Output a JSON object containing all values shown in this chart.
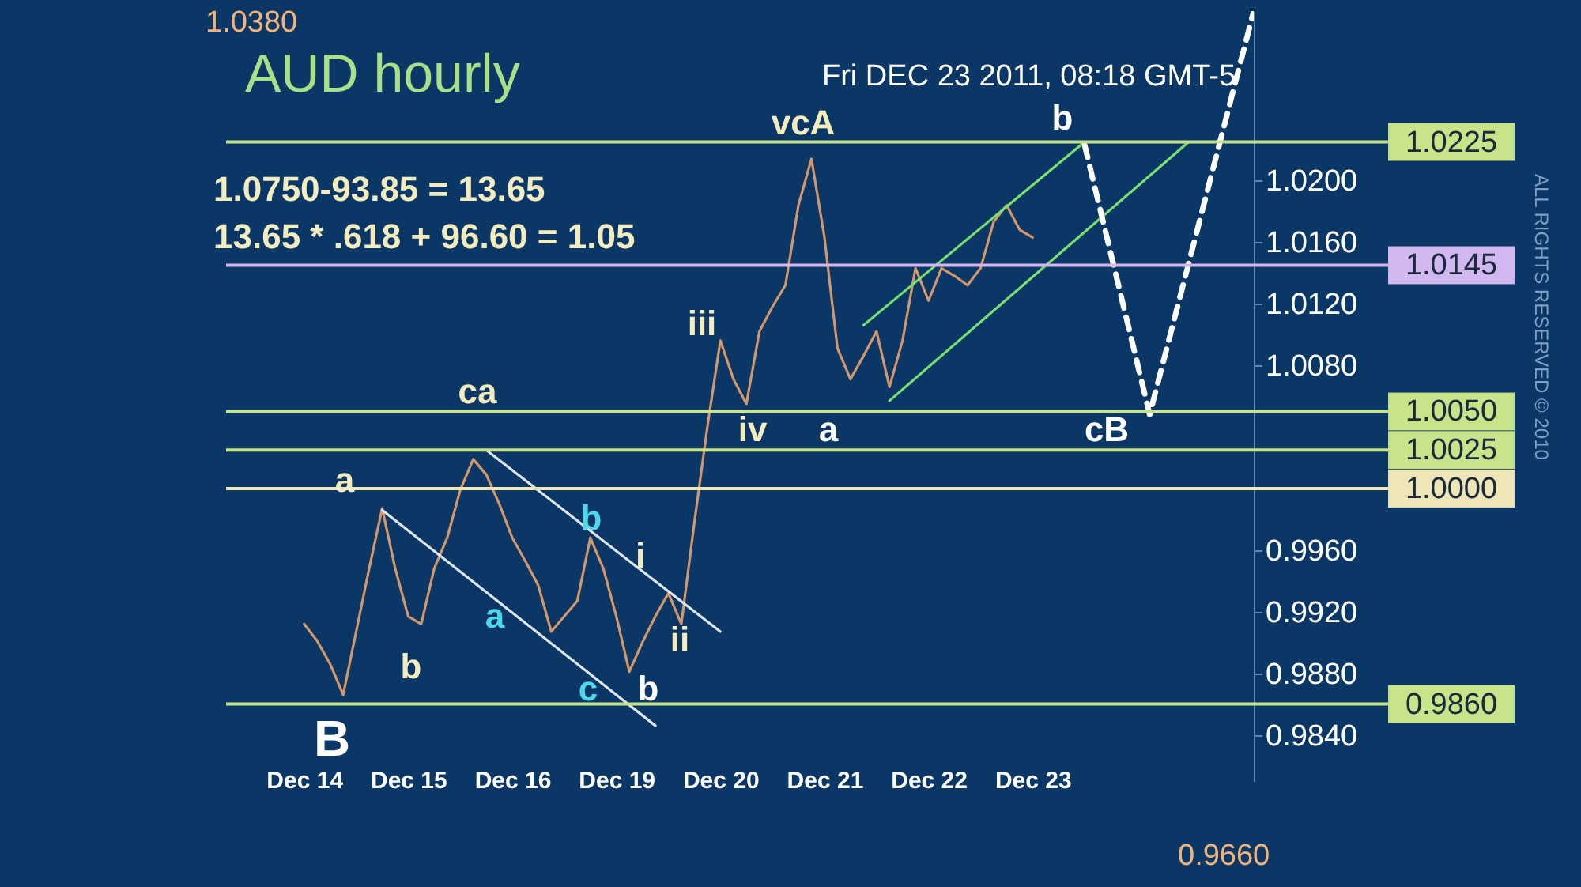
{
  "chart_data": {
    "type": "line",
    "title": "AUD hourly",
    "subtitle": "Fri DEC 23 2011, 08:18 GMT-5",
    "categories": [
      null,
      null,
      null,
      null,
      null,
      null,
      "Dec 14",
      null,
      null,
      null,
      null,
      null,
      null,
      null,
      "Dec 15",
      null,
      null,
      null,
      null,
      null,
      null,
      null,
      "Dec 16",
      null,
      null,
      null,
      null,
      null,
      null,
      null,
      "Dec 19",
      null,
      null,
      null,
      null,
      null,
      null,
      null,
      "Dec 20",
      null,
      null,
      null,
      null,
      null,
      null,
      null,
      "Dec 21",
      null,
      null,
      null,
      null,
      null,
      null,
      null,
      "Dec 22",
      null,
      null,
      null,
      null,
      null,
      null,
      null,
      "Dec 23",
      null,
      null,
      null,
      null,
      null,
      null,
      null,
      null,
      null,
      null,
      null,
      null,
      null,
      null,
      null,
      null,
      null
    ],
    "ylim": [
      0.981,
      1.031
    ],
    "yticks": [
      {
        "value": 0.984,
        "label": "0.9840"
      },
      {
        "value": 0.988,
        "label": "0.9880"
      },
      {
        "value": 0.992,
        "label": "0.9920"
      },
      {
        "value": 0.996,
        "label": "0.9960"
      },
      {
        "value": 1.008,
        "label": "1.0080"
      },
      {
        "value": 1.012,
        "label": "1.0120"
      },
      {
        "value": 1.016,
        "label": "1.0160"
      },
      {
        "value": 1.02,
        "label": "1.0200"
      }
    ],
    "grid": false,
    "series": [
      {
        "color": "#d2976a",
        "values": [
          null,
          null,
          null,
          null,
          null,
          null,
          0.9912,
          0.9901,
          0.9886,
          0.9866,
          0.9907,
          0.9948,
          0.9987,
          0.9948,
          0.9917,
          0.9912,
          0.9948,
          0.9968,
          0.9999,
          1.0019,
          1.0009,
          0.999,
          0.9968,
          0.9953,
          0.9937,
          0.9907,
          0.9917,
          0.9927,
          0.9968,
          0.9948,
          0.9917,
          0.9881,
          0.99,
          0.9917,
          0.9932,
          0.9912,
          0.9978,
          1.004,
          1.0096,
          1.0071,
          1.0055,
          1.0102,
          1.0118,
          1.0132,
          1.0184,
          1.0214,
          1.0163,
          1.0091,
          1.0071,
          1.0086,
          1.0102,
          1.0066,
          1.0096,
          1.0143,
          1.0122,
          1.0143,
          1.0138,
          1.0132,
          1.0143,
          1.0173,
          1.0184,
          1.0168,
          1.0163,
          null,
          null,
          null,
          null,
          null,
          null,
          null,
          null,
          null,
          null,
          null,
          null,
          null,
          null,
          null,
          null,
          null
        ]
      },
      {
        "color": "#dde6f0",
        "values": [
          null,
          null,
          null,
          null,
          null,
          null,
          null,
          null,
          null,
          null,
          null,
          null,
          0.9986,
          null,
          null,
          null,
          null,
          null,
          null,
          null,
          null,
          null,
          null,
          null,
          null,
          null,
          null,
          null,
          null,
          null,
          null,
          null,
          null,
          0.9846,
          null,
          null,
          null,
          null,
          null,
          null,
          null,
          null,
          null,
          null,
          null,
          null,
          null,
          null,
          null,
          null,
          null,
          null,
          null,
          null,
          null,
          null,
          null,
          null,
          null,
          null,
          null,
          null,
          null,
          null,
          null,
          null,
          null,
          null,
          null,
          null,
          null,
          null,
          null,
          null,
          null,
          null,
          null,
          null,
          null,
          null
        ]
      },
      {
        "color": "#dde6f0",
        "values": [
          null,
          null,
          null,
          null,
          null,
          null,
          null,
          null,
          null,
          null,
          null,
          null,
          null,
          null,
          null,
          null,
          null,
          null,
          null,
          null,
          1.0025,
          null,
          null,
          null,
          null,
          null,
          null,
          null,
          null,
          null,
          null,
          null,
          null,
          null,
          null,
          null,
          null,
          null,
          0.9907,
          null,
          null,
          null,
          null,
          null,
          null,
          null,
          null,
          null,
          null,
          null,
          null,
          null,
          null,
          null,
          null,
          null,
          null,
          null,
          null,
          null,
          null,
          null,
          null,
          null,
          null,
          null,
          null,
          null,
          null,
          null,
          null,
          null,
          null,
          null,
          null,
          null,
          null,
          null,
          null,
          null
        ]
      },
      {
        "color": "#77e070",
        "values": [
          null,
          null,
          null,
          null,
          null,
          null,
          null,
          null,
          null,
          null,
          null,
          null,
          null,
          null,
          null,
          null,
          null,
          null,
          null,
          null,
          null,
          null,
          null,
          null,
          null,
          null,
          null,
          null,
          null,
          null,
          null,
          null,
          null,
          null,
          null,
          null,
          null,
          null,
          null,
          null,
          null,
          null,
          null,
          null,
          null,
          null,
          null,
          null,
          null,
          1.0106,
          null,
          null,
          null,
          null,
          null,
          null,
          null,
          null,
          null,
          null,
          null,
          null,
          null,
          null,
          null,
          null,
          1.0225,
          null,
          null,
          null,
          null,
          null,
          null,
          null,
          null,
          null,
          null,
          null,
          null,
          null
        ]
      },
      {
        "color": "#77e070",
        "values": [
          null,
          null,
          null,
          null,
          null,
          null,
          null,
          null,
          null,
          null,
          null,
          null,
          null,
          null,
          null,
          null,
          null,
          null,
          null,
          null,
          null,
          null,
          null,
          null,
          null,
          null,
          null,
          null,
          null,
          null,
          null,
          null,
          null,
          null,
          null,
          null,
          null,
          null,
          null,
          null,
          null,
          null,
          null,
          null,
          null,
          null,
          null,
          null,
          null,
          null,
          null,
          1.0057,
          null,
          null,
          null,
          null,
          null,
          null,
          null,
          null,
          null,
          null,
          null,
          null,
          null,
          null,
          null,
          null,
          null,
          null,
          null,
          null,
          null,
          null,
          1.0225,
          null,
          null,
          null,
          null,
          null
        ]
      },
      {
        "color": "#ffffff",
        "line_style": "dashed",
        "values": [
          null,
          null,
          null,
          null,
          null,
          null,
          null,
          null,
          null,
          null,
          null,
          null,
          null,
          null,
          null,
          null,
          null,
          null,
          null,
          null,
          null,
          null,
          null,
          null,
          null,
          null,
          null,
          null,
          null,
          null,
          null,
          null,
          null,
          null,
          null,
          null,
          null,
          null,
          null,
          null,
          null,
          null,
          null,
          null,
          null,
          null,
          null,
          null,
          null,
          null,
          null,
          null,
          null,
          null,
          null,
          null,
          null,
          null,
          null,
          null,
          null,
          null,
          null,
          null,
          null,
          null,
          1.0223,
          null,
          null,
          null,
          null,
          1.0048,
          null,
          null,
          null,
          null,
          null,
          null,
          null,
          1.031
        ]
      }
    ],
    "ref_lines": [
      {
        "axis": "y",
        "value": 1.0225,
        "label": "1.0225",
        "color": "#c8e48a"
      },
      {
        "axis": "y",
        "value": 1.0145,
        "label": "1.0145",
        "color": "#d2b8f0"
      },
      {
        "axis": "y",
        "value": 1.005,
        "label": "1.0050",
        "color": "#c8e48a"
      },
      {
        "axis": "y",
        "value": 1.0025,
        "label": "1.0025",
        "color": "#c8e48a"
      },
      {
        "axis": "y",
        "value": 1.0,
        "label": "1.0000",
        "color": "#efe6b8"
      },
      {
        "axis": "y",
        "value": 0.986,
        "label": "0.9860",
        "color": "#c8e48a"
      }
    ],
    "annotations": [
      "1.0750-93.85 = 13.65",
      "13.65 * .618 + 96.60 = 1.05",
      "1.0380",
      "0.9660",
      "ALL RIGHTS RESERVED © 2010",
      "B",
      "a",
      "b",
      "ca",
      "a",
      "b",
      "c",
      "b",
      "i",
      "ii",
      "iii",
      "iv",
      "vcA",
      "a",
      "b",
      "cB"
    ]
  }
}
